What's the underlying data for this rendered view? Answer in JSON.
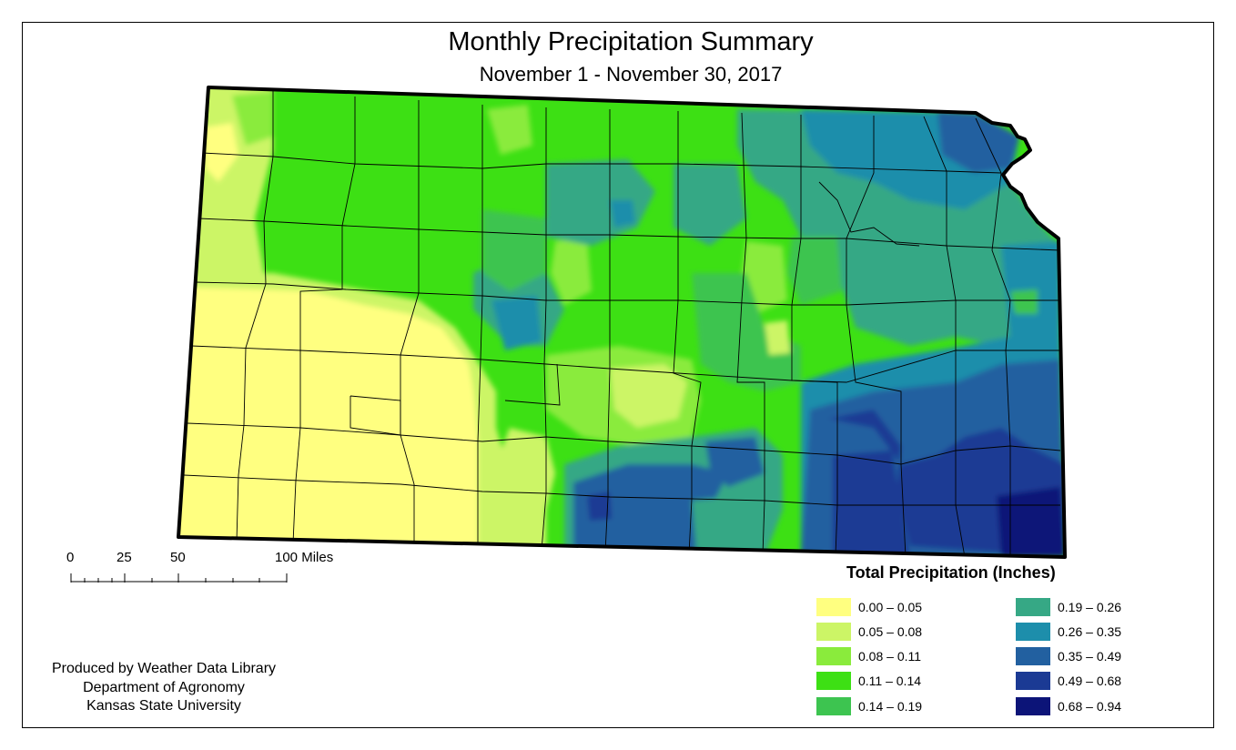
{
  "title": "Monthly Precipitation Summary",
  "subtitle": "November 1 - November 30, 2017",
  "scale_bar": {
    "labels": [
      "0",
      "25",
      "50",
      "100 Miles"
    ]
  },
  "credits": {
    "line1": "Produced by Weather Data Library",
    "line2": "Department of Agronomy",
    "line3": "Kansas State University"
  },
  "legend": {
    "title": "Total Precipitation (Inches)",
    "classes": [
      {
        "label": "0.00 – 0.05",
        "color": "#ffff80"
      },
      {
        "label": "0.05 – 0.08",
        "color": "#ccf566"
      },
      {
        "label": "0.08 – 0.11",
        "color": "#8aeb3c"
      },
      {
        "label": "0.11 – 0.14",
        "color": "#3de014"
      },
      {
        "label": "0.14 – 0.19",
        "color": "#3dc450"
      },
      {
        "label": "0.19 – 0.26",
        "color": "#36a885"
      },
      {
        "label": "0.26 – 0.35",
        "color": "#1d8eab"
      },
      {
        "label": "0.35 – 0.49",
        "color": "#2260a0"
      },
      {
        "label": "0.49 – 0.68",
        "color": "#1b3a94"
      },
      {
        "label": "0.68 – 0.94",
        "color": "#0c1478"
      }
    ]
  }
}
